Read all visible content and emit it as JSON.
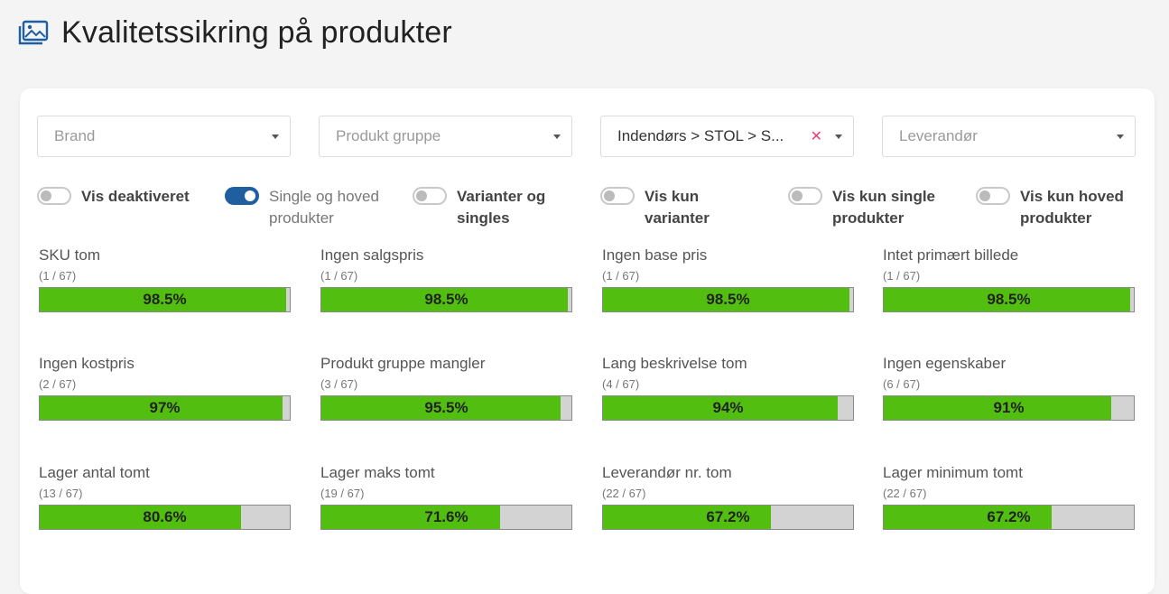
{
  "page": {
    "title": "Kvalitetssikring på produkter",
    "icon": "image-gallery-icon",
    "accent_color": "#1f5fa0"
  },
  "filters": [
    {
      "name": "brand",
      "placeholder": "Brand",
      "value": ""
    },
    {
      "name": "produkt-gruppe",
      "placeholder": "Produkt gruppe",
      "value": ""
    },
    {
      "name": "kategori",
      "placeholder": "",
      "value": "Indendørs > STOL > S..."
    },
    {
      "name": "leverandor",
      "placeholder": "Leverandør",
      "value": ""
    }
  ],
  "toggles": [
    {
      "label": "Vis deaktiveret",
      "on": false
    },
    {
      "label": "Single og hoved produkter",
      "on": true
    },
    {
      "label": "Varianter og singles",
      "on": false
    },
    {
      "label": "Vis kun varianter",
      "on": false
    },
    {
      "label": "Vis kun single produkter",
      "on": false
    },
    {
      "label": "Vis kun hoved produkter",
      "on": false
    }
  ],
  "metrics": [
    {
      "title": "SKU tom",
      "count": "(1 / 67)",
      "percent_label": "98.5%",
      "percent": 98.5
    },
    {
      "title": "Ingen salgspris",
      "count": "(1 / 67)",
      "percent_label": "98.5%",
      "percent": 98.5
    },
    {
      "title": "Ingen base pris",
      "count": "(1 / 67)",
      "percent_label": "98.5%",
      "percent": 98.5
    },
    {
      "title": "Intet primært billede",
      "count": "(1 / 67)",
      "percent_label": "98.5%",
      "percent": 98.5
    },
    {
      "title": "Ingen kostpris",
      "count": "(2 / 67)",
      "percent_label": "97%",
      "percent": 97
    },
    {
      "title": "Produkt gruppe mangler",
      "count": "(3 / 67)",
      "percent_label": "95.5%",
      "percent": 95.5
    },
    {
      "title": "Lang beskrivelse tom",
      "count": "(4 / 67)",
      "percent_label": "94%",
      "percent": 94
    },
    {
      "title": "Ingen egenskaber",
      "count": "(6 / 67)",
      "percent_label": "91%",
      "percent": 91
    },
    {
      "title": "Lager antal tomt",
      "count": "(13 / 67)",
      "percent_label": "80.6%",
      "percent": 80.6
    },
    {
      "title": "Lager maks tomt",
      "count": "(19 / 67)",
      "percent_label": "71.6%",
      "percent": 71.6
    },
    {
      "title": "Leverandør nr. tom",
      "count": "(22 / 67)",
      "percent_label": "67.2%",
      "percent": 67.2
    },
    {
      "title": "Lager minimum tomt",
      "count": "(22 / 67)",
      "percent_label": "67.2%",
      "percent": 67.2
    }
  ],
  "colors": {
    "bar_fill": "#52bf10",
    "bar_track": "#d3d3d3",
    "clear_icon": "#e8407a"
  }
}
